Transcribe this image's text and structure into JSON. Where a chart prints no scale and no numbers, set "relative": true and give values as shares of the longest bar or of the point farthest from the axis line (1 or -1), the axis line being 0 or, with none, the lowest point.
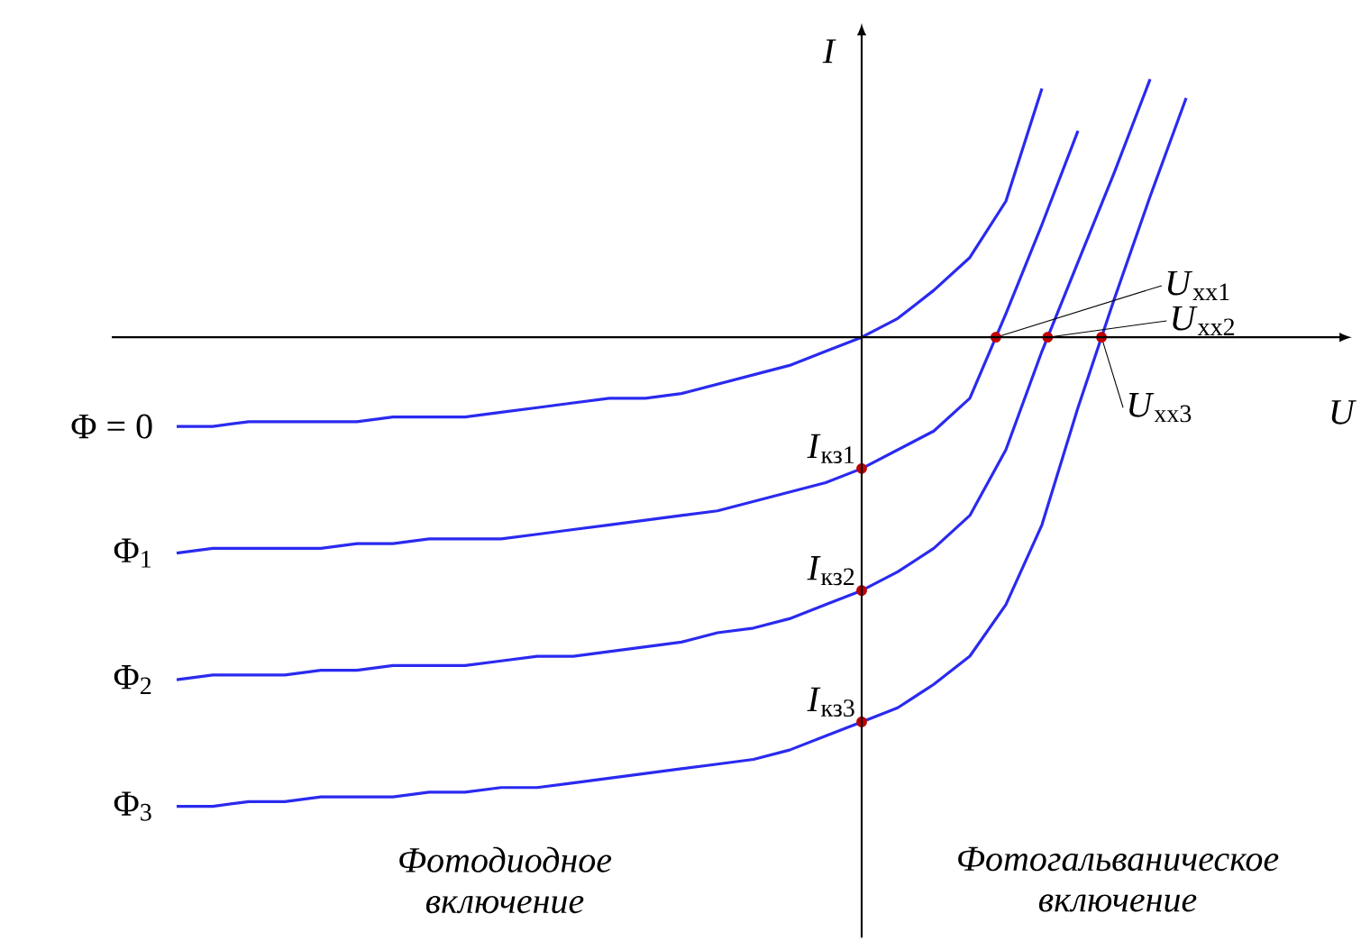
{
  "chart_data": {
    "type": "line",
    "relative": true,
    "xlabel": "U",
    "ylabel": "I",
    "categories": [
      null,
      null,
      null,
      null,
      null,
      null,
      null,
      null,
      null,
      null,
      null,
      null,
      null,
      null,
      null,
      null,
      null,
      null,
      null,
      null,
      null,
      null,
      null,
      null,
      null,
      null,
      null,
      null,
      null
    ],
    "series": [
      {
        "name": "Φ = 0",
        "color": "#2a2af0",
        "values": [
          -0.19,
          -0.19,
          -0.18,
          -0.18,
          -0.18,
          -0.18,
          -0.17,
          -0.17,
          -0.17,
          -0.16,
          -0.15,
          -0.14,
          -0.13,
          -0.13,
          -0.12,
          -0.1,
          -0.08,
          -0.06,
          -0.03,
          0,
          0.04,
          0.1,
          0.17,
          0.29,
          0.53,
          null,
          null,
          null,
          null
        ]
      },
      {
        "name": "Φ$_{1}$",
        "color": "#2a2af0",
        "values": [
          -0.46,
          -0.45,
          -0.45,
          -0.45,
          -0.45,
          -0.44,
          -0.44,
          -0.43,
          -0.43,
          -0.43,
          -0.42,
          -0.41,
          -0.4,
          -0.39,
          -0.38,
          -0.37,
          -0.35,
          -0.33,
          -0.31,
          -0.28,
          -0.24,
          -0.2,
          -0.13,
          0.05,
          0.24,
          0.44,
          null,
          null,
          null
        ]
      },
      {
        "name": "Φ$_{2}$",
        "color": "#2a2af0",
        "values": [
          -0.73,
          -0.72,
          -0.72,
          -0.72,
          -0.71,
          -0.71,
          -0.7,
          -0.7,
          -0.7,
          -0.69,
          -0.68,
          -0.68,
          -0.67,
          -0.66,
          -0.65,
          -0.63,
          -0.62,
          -0.6,
          -0.57,
          -0.54,
          -0.5,
          -0.45,
          -0.38,
          -0.24,
          -0.03,
          0.16,
          0.35,
          0.55,
          null
        ]
      },
      {
        "name": "Φ$_{3}$",
        "color": "#2a2af0",
        "values": [
          -1.0,
          -1.0,
          -0.99,
          -0.99,
          -0.98,
          -0.98,
          -0.98,
          -0.97,
          -0.97,
          -0.96,
          -0.96,
          -0.95,
          -0.94,
          -0.93,
          -0.92,
          -0.91,
          -0.9,
          -0.88,
          -0.85,
          -0.82,
          -0.79,
          -0.74,
          -0.68,
          -0.57,
          -0.4,
          -0.15,
          0.08,
          0.3,
          0.51
        ]
      }
    ],
    "annotations": [
      "*I*$_{кз1}$",
      "*I*$_{кз2}$",
      "*I*$_{кз3}$",
      "*U*$_{хх1}$",
      "*U*$_{хх2}$",
      "*U*$_{хх3}$",
      "Фотодиодное включение",
      "Фотогальваническое включение"
    ]
  }
}
